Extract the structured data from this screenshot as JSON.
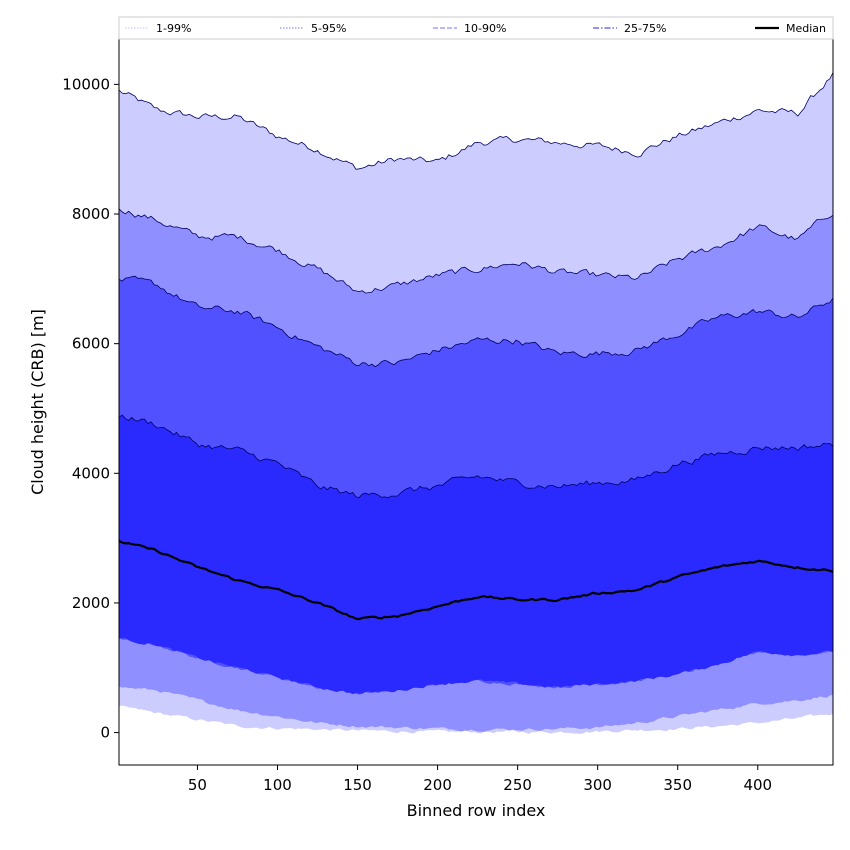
{
  "chart_data": {
    "type": "area",
    "xlabel": "Binned row index",
    "ylabel": "Cloud height (CRB) [m]",
    "xlim": [
      1,
      447
    ],
    "ylim": [
      -500,
      10700
    ],
    "x_ticks": [
      50,
      100,
      150,
      200,
      250,
      300,
      350,
      400
    ],
    "y_ticks": [
      0,
      2000,
      4000,
      6000,
      8000,
      10000
    ],
    "grid": false,
    "legend_placement": "top, spanning full width above plot",
    "x": [
      1,
      25,
      50,
      75,
      100,
      125,
      150,
      175,
      200,
      225,
      250,
      275,
      300,
      325,
      350,
      375,
      400,
      425,
      447
    ],
    "bands": [
      {
        "name": "1-99%",
        "color": "#ccccff",
        "lower": [
          400,
          300,
          200,
          100,
          70,
          50,
          30,
          20,
          10,
          10,
          10,
          10,
          20,
          40,
          60,
          100,
          150,
          220,
          290
        ],
        "upper": [
          9900,
          9600,
          9500,
          9500,
          9200,
          9000,
          8700,
          8850,
          8800,
          9100,
          9150,
          9100,
          9050,
          8950,
          9200,
          9400,
          9600,
          9550,
          10150
        ]
      },
      {
        "name": "5-95%",
        "color": "#8f8fff",
        "lower": [
          700,
          650,
          500,
          350,
          250,
          150,
          100,
          80,
          60,
          50,
          50,
          60,
          80,
          150,
          250,
          350,
          450,
          500,
          580
        ],
        "upper": [
          8100,
          7900,
          7650,
          7650,
          7450,
          7150,
          6800,
          6900,
          7050,
          7150,
          7250,
          7100,
          7050,
          7000,
          7300,
          7500,
          7800,
          7600,
          8050
        ]
      },
      {
        "name": "10-90%",
        "color": "#5151ff",
        "lower": [
          1450,
          1350,
          1150,
          1000,
          850,
          700,
          600,
          650,
          750,
          800,
          750,
          700,
          750,
          800,
          900,
          1050,
          1250,
          1200,
          1250
        ],
        "upper": [
          7000,
          6900,
          6550,
          6500,
          6250,
          5950,
          5700,
          5700,
          5900,
          6050,
          6050,
          5850,
          5850,
          5900,
          6150,
          6400,
          6500,
          6400,
          6700
        ]
      },
      {
        "name": "25-75%",
        "color": "#2a2aff",
        "lower": [
          1450,
          1350,
          1150,
          1000,
          850,
          700,
          600,
          650,
          750,
          800,
          750,
          700,
          750,
          800,
          900,
          1050,
          1250,
          1200,
          1250
        ],
        "upper": [
          4900,
          4750,
          4450,
          4350,
          4150,
          3800,
          3650,
          3700,
          3800,
          3950,
          3850,
          3800,
          3850,
          3900,
          4150,
          4300,
          4400,
          4400,
          4450
        ]
      }
    ],
    "median": {
      "name": "Median",
      "color": "#000000",
      "values": [
        2950,
        2800,
        2550,
        2350,
        2200,
        2000,
        1750,
        1800,
        1950,
        2100,
        2050,
        2050,
        2150,
        2200,
        2400,
        2550,
        2650,
        2550,
        2500
      ]
    },
    "legend": [
      {
        "label": "1-99%",
        "style": "dotted",
        "color": "#ccccff"
      },
      {
        "label": "5-95%",
        "style": "dotted",
        "color": "#8f8fff"
      },
      {
        "label": "10-90%",
        "style": "dashed",
        "color": "#8f8fff"
      },
      {
        "label": "25-75%",
        "style": "dashdot",
        "color": "#5151ff"
      },
      {
        "label": "Median",
        "style": "solid",
        "color": "#000000"
      }
    ]
  }
}
